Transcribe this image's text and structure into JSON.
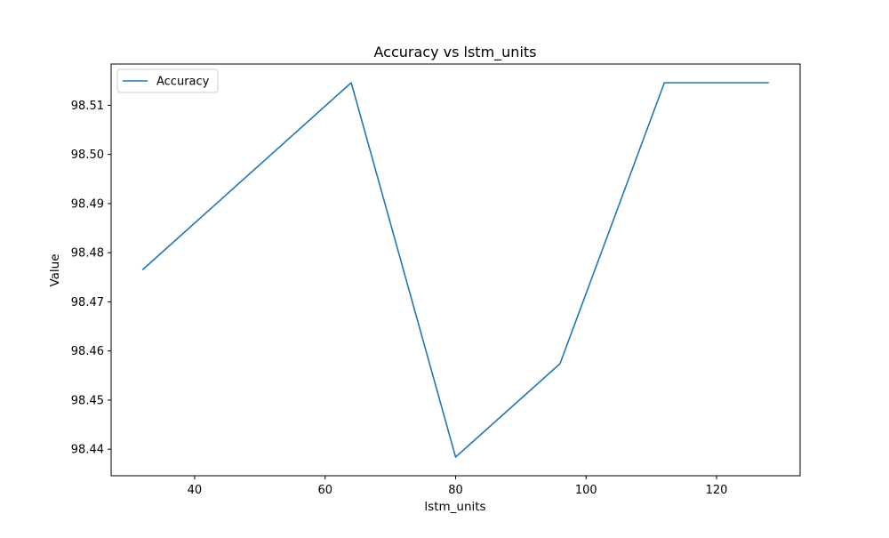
{
  "chart_data": {
    "type": "line",
    "title": "Accuracy vs lstm_units",
    "xlabel": "lstm_units",
    "ylabel": "Value",
    "x": [
      32,
      64,
      80,
      96,
      112,
      128
    ],
    "series": [
      {
        "name": "Accuracy",
        "values": [
          98.4765,
          98.5146,
          98.4384,
          98.4574,
          98.5146,
          98.5146
        ]
      }
    ],
    "xlim": [
      27.2,
      132.8
    ],
    "ylim": [
      98.4346,
      98.5184
    ],
    "xticks": [
      40,
      60,
      80,
      100,
      120
    ],
    "yticks": [
      98.44,
      98.45,
      98.46,
      98.47,
      98.48,
      98.49,
      98.5,
      98.51
    ],
    "xtick_labels": [
      "40",
      "60",
      "80",
      "100",
      "120"
    ],
    "ytick_labels": [
      "98.44",
      "98.45",
      "98.46",
      "98.47",
      "98.48",
      "98.49",
      "98.50",
      "98.51"
    ],
    "grid": false,
    "legend_position": "top-left",
    "colors": {
      "series": "#1f77b4",
      "axes": "#000000",
      "background": "#ffffff"
    }
  }
}
